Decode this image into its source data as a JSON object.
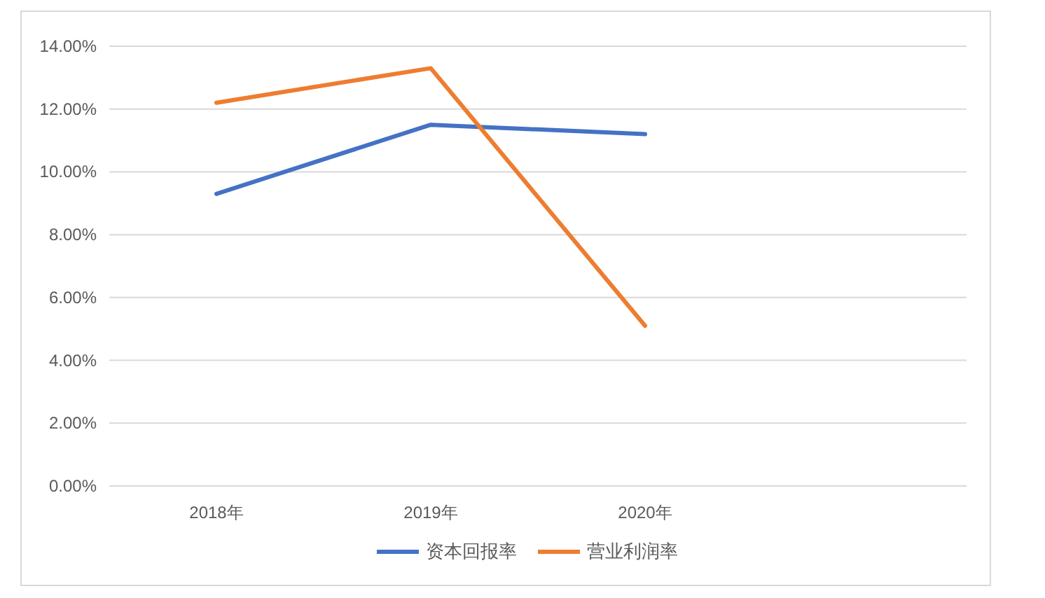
{
  "chart_data": {
    "type": "line",
    "categories": [
      "2018年",
      "2019年",
      "2020年",
      null
    ],
    "series": [
      {
        "name": "资本回报率",
        "color": "#4472c4",
        "values": [
          9.3,
          11.5,
          11.2,
          null
        ]
      },
      {
        "name": "营业利润率",
        "color": "#ed7d31",
        "values": [
          12.2,
          13.3,
          5.1,
          null
        ]
      }
    ],
    "ylim": [
      0,
      14
    ],
    "yticks": [
      {
        "value": 0,
        "label": "0.00%"
      },
      {
        "value": 2,
        "label": "2.00%"
      },
      {
        "value": 4,
        "label": "4.00%"
      },
      {
        "value": 6,
        "label": "6.00%"
      },
      {
        "value": 8,
        "label": "8.00%"
      },
      {
        "value": 10,
        "label": "10.00%"
      },
      {
        "value": 12,
        "label": "12.00%"
      },
      {
        "value": 14,
        "label": "14.00%"
      }
    ],
    "grid": "y",
    "legend": "bottom",
    "marker": "none",
    "line_style": "solid"
  }
}
